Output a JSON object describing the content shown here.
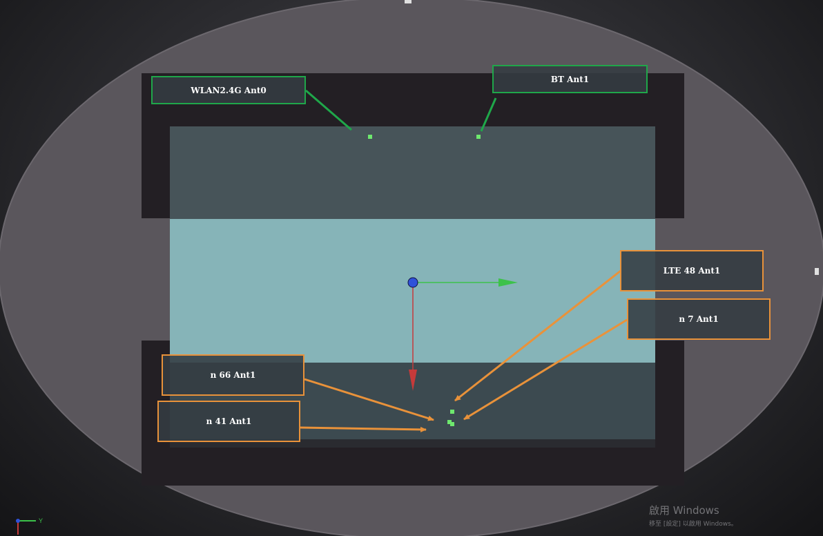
{
  "scene": {
    "colors": {
      "background": "#2b2b2f",
      "ellipse": "#5a565c",
      "dark_panel": "#231f24",
      "board_slate": "#475459",
      "board_cyan": "#86b4b8",
      "green": "#1fa74a",
      "orange": "#e9923a",
      "point": "#6ee86e"
    }
  },
  "labels": {
    "wlan": "WLAN2.4G Ant0",
    "bt": "BT Ant1",
    "lte48": "LTE  48 Ant1",
    "n7": "n  7 Ant1",
    "n66": "n  66 Ant1",
    "n41": "n  41 Ant1"
  },
  "axis_triad": {
    "y_label": "Y"
  },
  "watermark": {
    "title": "啟用 Windows",
    "subtitle": "移至 [設定] 以啟用 Windows。"
  }
}
